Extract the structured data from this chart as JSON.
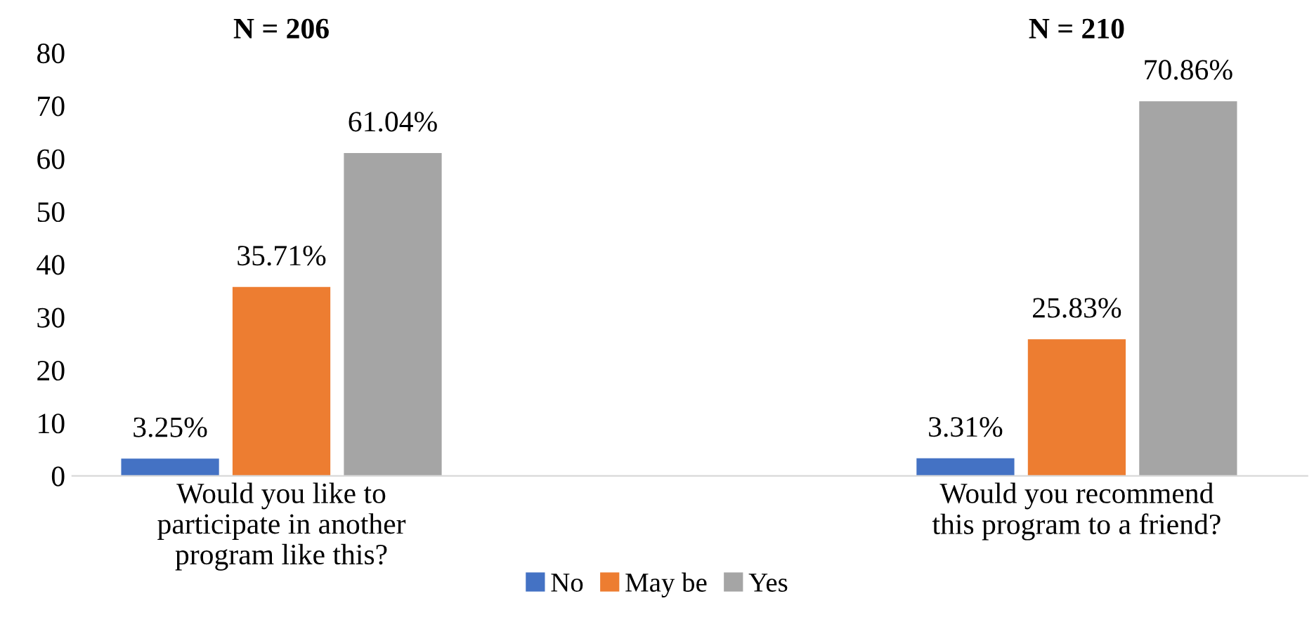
{
  "chart_data": {
    "type": "bar",
    "categories": [
      "Would you like to\nparticipate in another\nprogram like this?",
      "Would you recommend\nthis program to a friend?"
    ],
    "series": [
      {
        "name": "No",
        "color": "#4472c4",
        "values": [
          3.25,
          3.31
        ],
        "value_labels": [
          "3.25%",
          "3.31%"
        ]
      },
      {
        "name": "May be",
        "color": "#ed7d31",
        "values": [
          35.71,
          25.83
        ],
        "value_labels": [
          "35.71%",
          "25.83%"
        ]
      },
      {
        "name": "Yes",
        "color": "#a5a5a5",
        "values": [
          61.04,
          70.86
        ],
        "value_labels": [
          "61.04%",
          "70.86%"
        ]
      }
    ],
    "annotations": [
      "N = 206",
      "N = 210"
    ],
    "ylim": [
      0,
      80
    ],
    "yticks": [
      0,
      10,
      20,
      30,
      40,
      50,
      60,
      70,
      80
    ],
    "grid": false,
    "legend": "bottom"
  }
}
